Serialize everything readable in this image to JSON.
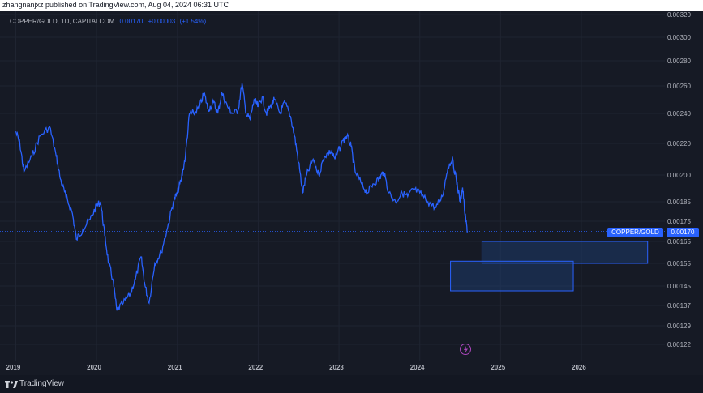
{
  "header": {
    "text": "zhangnanjxz published on TradingView.com, Aug 04, 2024 06:31 UTC"
  },
  "legend": {
    "symbol": "COPPER/GOLD, 1D, CAPITALCOM",
    "last": "0.00170",
    "change": "+0.00003",
    "change_pct": "(+1.54%)"
  },
  "price_label": {
    "name": "COPPER/GOLD",
    "value": "0.00170"
  },
  "footer": {
    "brand": "TradingView"
  },
  "colors": {
    "line": "#2962ff",
    "bg": "#161a25",
    "grid": "#1f2431",
    "box_fill": "#1e3a6a",
    "box_stroke": "#2962ff"
  },
  "chart_data": {
    "type": "line",
    "y_scale": "nonlinear",
    "y_ticks": [
      "0.00320",
      "0.00300",
      "0.00280",
      "0.00260",
      "0.00240",
      "0.00220",
      "0.00200",
      "0.00185",
      "0.00175",
      "0.00165",
      "0.00155",
      "0.00145",
      "0.00137",
      "0.00129",
      "0.00122"
    ],
    "x_ticks": [
      "2019",
      "2020",
      "2021",
      "2022",
      "2023",
      "2024",
      "2025",
      "2026"
    ],
    "series": [
      {
        "name": "COPPER/GOLD",
        "points": [
          [
            2019.0,
            0.00228
          ],
          [
            2019.05,
            0.0022
          ],
          [
            2019.1,
            0.00202
          ],
          [
            2019.2,
            0.00212
          ],
          [
            2019.3,
            0.00225
          ],
          [
            2019.42,
            0.00231
          ],
          [
            2019.5,
            0.00212
          ],
          [
            2019.55,
            0.00198
          ],
          [
            2019.62,
            0.00188
          ],
          [
            2019.7,
            0.00179
          ],
          [
            2019.75,
            0.00166
          ],
          [
            2019.83,
            0.00171
          ],
          [
            2019.92,
            0.00176
          ],
          [
            2020.0,
            0.00183
          ],
          [
            2020.05,
            0.00185
          ],
          [
            2020.1,
            0.00168
          ],
          [
            2020.15,
            0.00155
          ],
          [
            2020.2,
            0.00148
          ],
          [
            2020.25,
            0.00135
          ],
          [
            2020.33,
            0.00138
          ],
          [
            2020.42,
            0.00142
          ],
          [
            2020.48,
            0.00148
          ],
          [
            2020.55,
            0.00158
          ],
          [
            2020.6,
            0.00145
          ],
          [
            2020.65,
            0.00138
          ],
          [
            2020.72,
            0.00155
          ],
          [
            2020.8,
            0.0016
          ],
          [
            2020.88,
            0.00172
          ],
          [
            2020.95,
            0.00185
          ],
          [
            2021.0,
            0.0019
          ],
          [
            2021.05,
            0.00198
          ],
          [
            2021.1,
            0.00212
          ],
          [
            2021.15,
            0.0024
          ],
          [
            2021.2,
            0.0024
          ],
          [
            2021.27,
            0.00244
          ],
          [
            2021.33,
            0.00255
          ],
          [
            2021.38,
            0.00243
          ],
          [
            2021.45,
            0.00248
          ],
          [
            2021.5,
            0.0024
          ],
          [
            2021.55,
            0.00255
          ],
          [
            2021.62,
            0.00245
          ],
          [
            2021.68,
            0.0024
          ],
          [
            2021.75,
            0.00242
          ],
          [
            2021.8,
            0.00262
          ],
          [
            2021.85,
            0.0024
          ],
          [
            2021.9,
            0.00236
          ],
          [
            2021.95,
            0.0025
          ],
          [
            2022.0,
            0.00245
          ],
          [
            2022.05,
            0.00252
          ],
          [
            2022.1,
            0.0024
          ],
          [
            2022.15,
            0.00245
          ],
          [
            2022.2,
            0.0025
          ],
          [
            2022.27,
            0.0024
          ],
          [
            2022.33,
            0.00248
          ],
          [
            2022.4,
            0.00238
          ],
          [
            2022.45,
            0.00225
          ],
          [
            2022.5,
            0.00208
          ],
          [
            2022.55,
            0.0019
          ],
          [
            2022.6,
            0.002
          ],
          [
            2022.68,
            0.0021
          ],
          [
            2022.75,
            0.002
          ],
          [
            2022.82,
            0.00212
          ],
          [
            2022.9,
            0.00215
          ],
          [
            2022.95,
            0.0021
          ],
          [
            2023.05,
            0.00222
          ],
          [
            2023.1,
            0.00225
          ],
          [
            2023.15,
            0.00218
          ],
          [
            2023.2,
            0.00202
          ],
          [
            2023.28,
            0.00195
          ],
          [
            2023.35,
            0.0019
          ],
          [
            2023.42,
            0.00195
          ],
          [
            2023.5,
            0.00198
          ],
          [
            2023.55,
            0.00202
          ],
          [
            2023.62,
            0.0019
          ],
          [
            2023.7,
            0.00185
          ],
          [
            2023.78,
            0.0019
          ],
          [
            2023.85,
            0.00188
          ],
          [
            2023.92,
            0.00192
          ],
          [
            2024.0,
            0.0019
          ],
          [
            2024.1,
            0.00185
          ],
          [
            2024.2,
            0.00182
          ],
          [
            2024.28,
            0.00188
          ],
          [
            2024.35,
            0.00205
          ],
          [
            2024.4,
            0.0021
          ],
          [
            2024.45,
            0.00198
          ],
          [
            2024.5,
            0.00185
          ],
          [
            2024.53,
            0.00193
          ],
          [
            2024.56,
            0.00178
          ],
          [
            2024.59,
            0.0017
          ]
        ]
      }
    ],
    "boxes": [
      {
        "x0": 2024.77,
        "x1": 2026.82,
        "y0": 0.00155,
        "y1": 0.00165
      },
      {
        "x0": 2024.38,
        "x1": 2025.9,
        "y0": 0.00143,
        "y1": 0.00156
      }
    ]
  }
}
